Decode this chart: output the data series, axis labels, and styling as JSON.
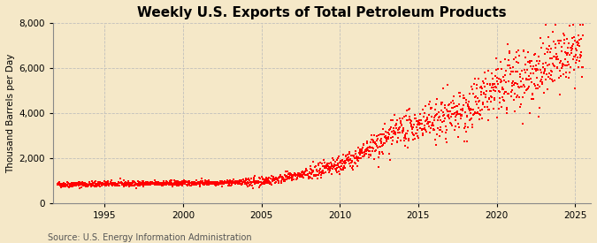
{
  "title": "Weekly U.S. Exports of Total Petroleum Products",
  "ylabel": "Thousand Barrels per Day",
  "source_text": "Source: U.S. Energy Information Administration",
  "xlim": [
    1991.7,
    2026.0
  ],
  "ylim": [
    0,
    8000
  ],
  "yticks": [
    0,
    2000,
    4000,
    6000,
    8000
  ],
  "ytick_labels": [
    "0",
    "2,000",
    "4,000",
    "6,000",
    "8,000"
  ],
  "xticks": [
    1995,
    2000,
    2005,
    2010,
    2015,
    2020,
    2025
  ],
  "data_color": "#FF0000",
  "background_color": "#F5E8C8",
  "grid_color": "#BBBBBB",
  "title_fontsize": 11,
  "label_fontsize": 7.5,
  "tick_fontsize": 7.5,
  "source_fontsize": 7,
  "marker_size": 1.8,
  "seed": 42
}
